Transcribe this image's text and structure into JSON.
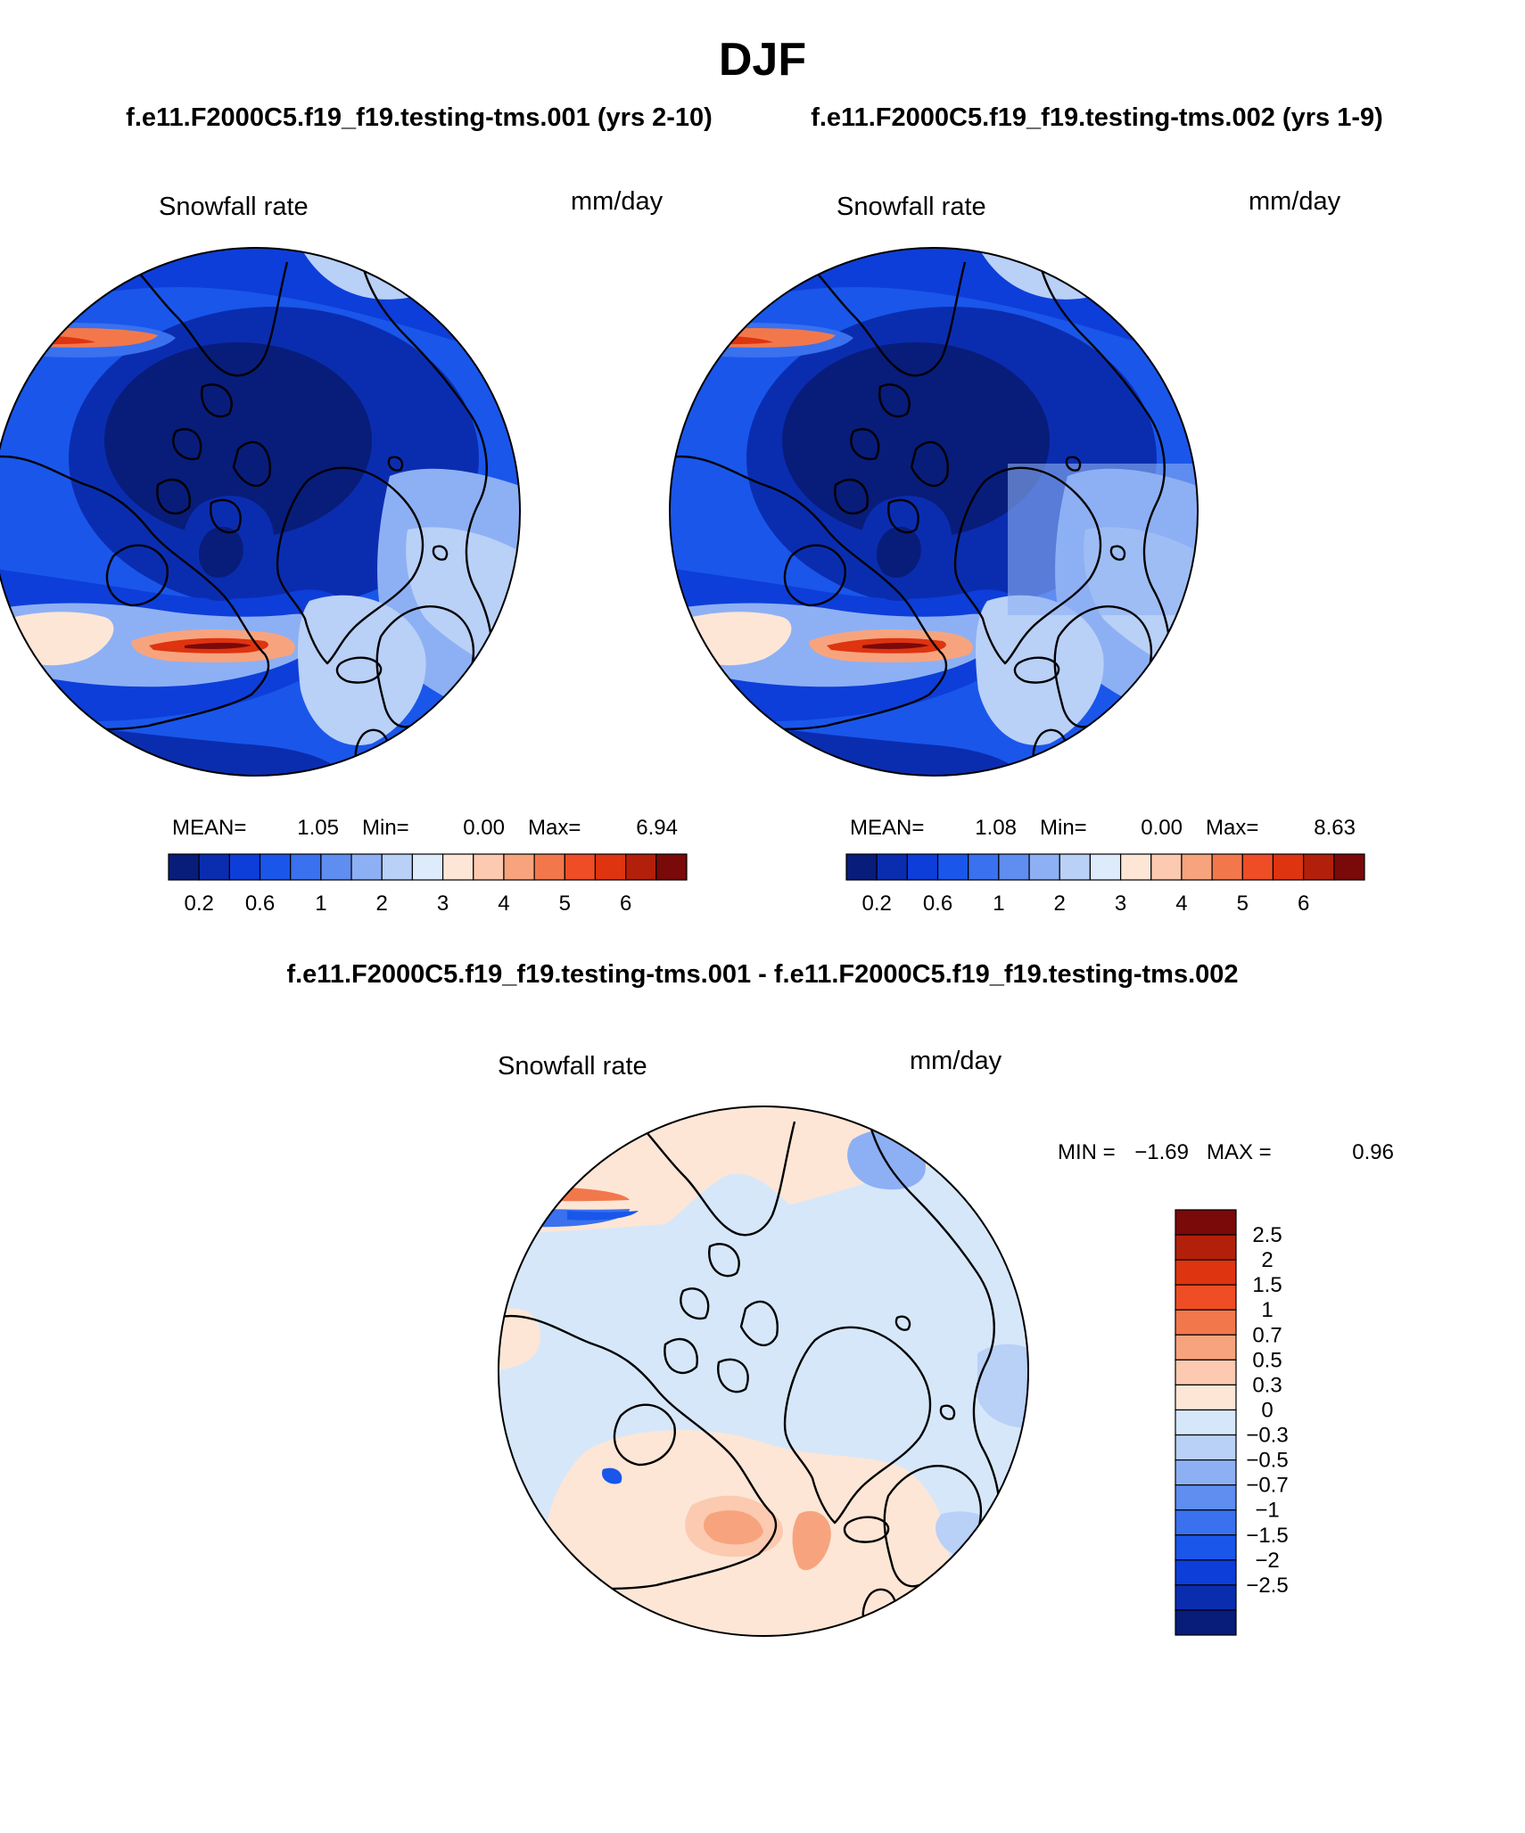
{
  "page": {
    "title": "DJF",
    "left_case_title": "f.e11.F2000C5.f19_f19.testing-tms.001 (yrs 2-10)",
    "right_case_title": "f.e11.F2000C5.f19_f19.testing-tms.002 (yrs 1-9)",
    "diff_title": "f.e11.F2000C5.f19_f19.testing-tms.001 - f.e11.F2000C5.f19_f19.testing-tms.002"
  },
  "colors": {
    "land_outline": "#000000",
    "abs_scale": [
      "#081c7a",
      "#0a2db0",
      "#0d3ed9",
      "#1a56ea",
      "#3a71ee",
      "#5f8df0",
      "#8db0f4",
      "#b9d0f7",
      "#deebfb",
      "#fde6d6",
      "#fbcab0",
      "#f7a47e",
      "#f2784c",
      "#ee4d25",
      "#de3410",
      "#b2200b",
      "#7a0909"
    ],
    "diff_scale": [
      "#081c7a",
      "#0a2db0",
      "#0d3ed9",
      "#1a56ea",
      "#3a71ee",
      "#5f8df0",
      "#8db0f4",
      "#b9d0f7",
      "#d6e7fa",
      "#fde6d6",
      "#fbcab0",
      "#f7a47e",
      "#f2784c",
      "#ee4d25",
      "#de3410",
      "#b2200b",
      "#7a0909"
    ]
  },
  "chart_data": [
    {
      "type": "heatmap",
      "title": "f.e11.F2000C5.f19_f19.testing-tms.001 (yrs 2-10)",
      "variable": "Snowfall rate",
      "units": "mm/day",
      "projection": "polar stereographic (north)",
      "stats_text": {
        "mean_label": "MEAN=",
        "mean": "1.05",
        "min_label": "Min=",
        "min": "0.00",
        "max_label": "Max=",
        "max": "6.94"
      },
      "colorbar": {
        "orientation": "horizontal",
        "levels": [
          0.2,
          0.4,
          0.6,
          0.8,
          1,
          1.5,
          2,
          2.5,
          3,
          3.5,
          4,
          4.5,
          5,
          5.5,
          6,
          6.5
        ],
        "tick_labels": [
          "0.2",
          "0.6",
          "1",
          "2",
          "3",
          "4",
          "5",
          "6"
        ]
      }
    },
    {
      "type": "heatmap",
      "title": "f.e11.F2000C5.f19_f19.testing-tms.002 (yrs 1-9)",
      "variable": "Snowfall rate",
      "units": "mm/day",
      "projection": "polar stereographic (north)",
      "stats_text": {
        "mean_label": "MEAN=",
        "mean": "1.08",
        "min_label": "Min=",
        "min": "0.00",
        "max_label": "Max=",
        "max": "8.63"
      },
      "colorbar": {
        "orientation": "horizontal",
        "levels": [
          0.2,
          0.4,
          0.6,
          0.8,
          1,
          1.5,
          2,
          2.5,
          3,
          3.5,
          4,
          4.5,
          5,
          5.5,
          6,
          6.5
        ],
        "tick_labels": [
          "0.2",
          "0.6",
          "1",
          "2",
          "3",
          "4",
          "5",
          "6"
        ]
      }
    },
    {
      "type": "heatmap",
      "title": "f.e11.F2000C5.f19_f19.testing-tms.001 - f.e11.F2000C5.f19_f19.testing-tms.002",
      "variable": "Snowfall rate",
      "units": "mm/day",
      "projection": "polar stereographic (north)",
      "stats_text": {
        "min_label": "MIN =",
        "min": "−1.69",
        "max_label": "MAX =",
        "max": "0.96"
      },
      "colorbar": {
        "orientation": "vertical",
        "tick_labels": [
          "2.5",
          "2",
          "1.5",
          "1",
          "0.7",
          "0.5",
          "0.3",
          "0",
          "−0.3",
          "−0.5",
          "−0.7",
          "−1",
          "−1.5",
          "−2",
          "−2.5"
        ]
      }
    }
  ]
}
